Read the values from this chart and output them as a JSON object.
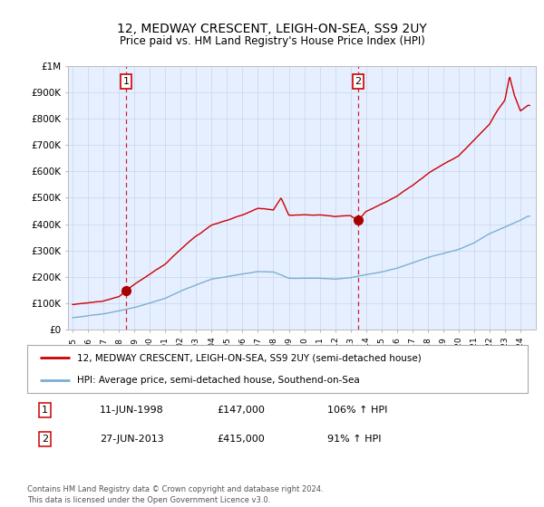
{
  "title": "12, MEDWAY CRESCENT, LEIGH-ON-SEA, SS9 2UY",
  "subtitle": "Price paid vs. HM Land Registry's House Price Index (HPI)",
  "sale1_price": 147000,
  "sale1_label": "1",
  "sale2_price": 415000,
  "sale2_label": "2",
  "legend_line1": "12, MEDWAY CRESCENT, LEIGH-ON-SEA, SS9 2UY (semi-detached house)",
  "legend_line2": "HPI: Average price, semi-detached house, Southend-on-Sea",
  "table_row1": [
    "1",
    "11-JUN-1998",
    "£147,000",
    "106% ↑ HPI"
  ],
  "table_row2": [
    "2",
    "27-JUN-2013",
    "£415,000",
    "91% ↑ HPI"
  ],
  "footnote": "Contains HM Land Registry data © Crown copyright and database right 2024.\nThis data is licensed under the Open Government Licence v3.0.",
  "hpi_color": "#7BAFD4",
  "price_color": "#CC0000",
  "marker_color": "#AA0000",
  "dashed_color": "#CC0000",
  "bg_color": "#E6EFFF",
  "ylim": [
    0,
    1000000
  ],
  "xlim_start": 1994.7,
  "xlim_end": 2025.0,
  "sale1_t": 1998.45,
  "sale2_t": 2013.49,
  "hpi_knots": [
    1995.0,
    1996.0,
    1997.0,
    1998.0,
    1999.0,
    2000.0,
    2001.0,
    2002.0,
    2003.0,
    2004.0,
    2005.0,
    2006.0,
    2007.0,
    2008.0,
    2009.0,
    2010.0,
    2011.0,
    2012.0,
    2013.0,
    2014.0,
    2015.0,
    2016.0,
    2017.0,
    2018.0,
    2019.0,
    2020.0,
    2021.0,
    2022.0,
    2023.0,
    2024.0,
    2024.5
  ],
  "hpi_values": [
    45000,
    52000,
    60000,
    70000,
    83000,
    100000,
    118000,
    145000,
    168000,
    190000,
    200000,
    210000,
    220000,
    218000,
    195000,
    195000,
    195000,
    192000,
    198000,
    210000,
    220000,
    235000,
    255000,
    275000,
    290000,
    305000,
    330000,
    365000,
    390000,
    415000,
    430000
  ],
  "red_knots": [
    1995.0,
    1996.0,
    1997.0,
    1998.0,
    1998.45,
    1999.0,
    2000.0,
    2001.0,
    2002.0,
    2003.0,
    2004.0,
    2005.0,
    2006.0,
    2007.0,
    2008.0,
    2008.5,
    2009.0,
    2010.0,
    2011.0,
    2012.0,
    2013.0,
    2013.49,
    2014.0,
    2015.0,
    2016.0,
    2017.0,
    2018.0,
    2019.0,
    2020.0,
    2021.0,
    2022.0,
    2022.5,
    2023.0,
    2023.3,
    2023.6,
    2024.0,
    2024.5
  ],
  "red_values": [
    95000,
    100000,
    108000,
    125000,
    147000,
    170000,
    208000,
    245000,
    300000,
    350000,
    395000,
    415000,
    435000,
    460000,
    455000,
    500000,
    435000,
    435000,
    435000,
    430000,
    435000,
    415000,
    450000,
    480000,
    510000,
    550000,
    595000,
    630000,
    660000,
    720000,
    780000,
    830000,
    870000,
    960000,
    890000,
    830000,
    850000
  ]
}
